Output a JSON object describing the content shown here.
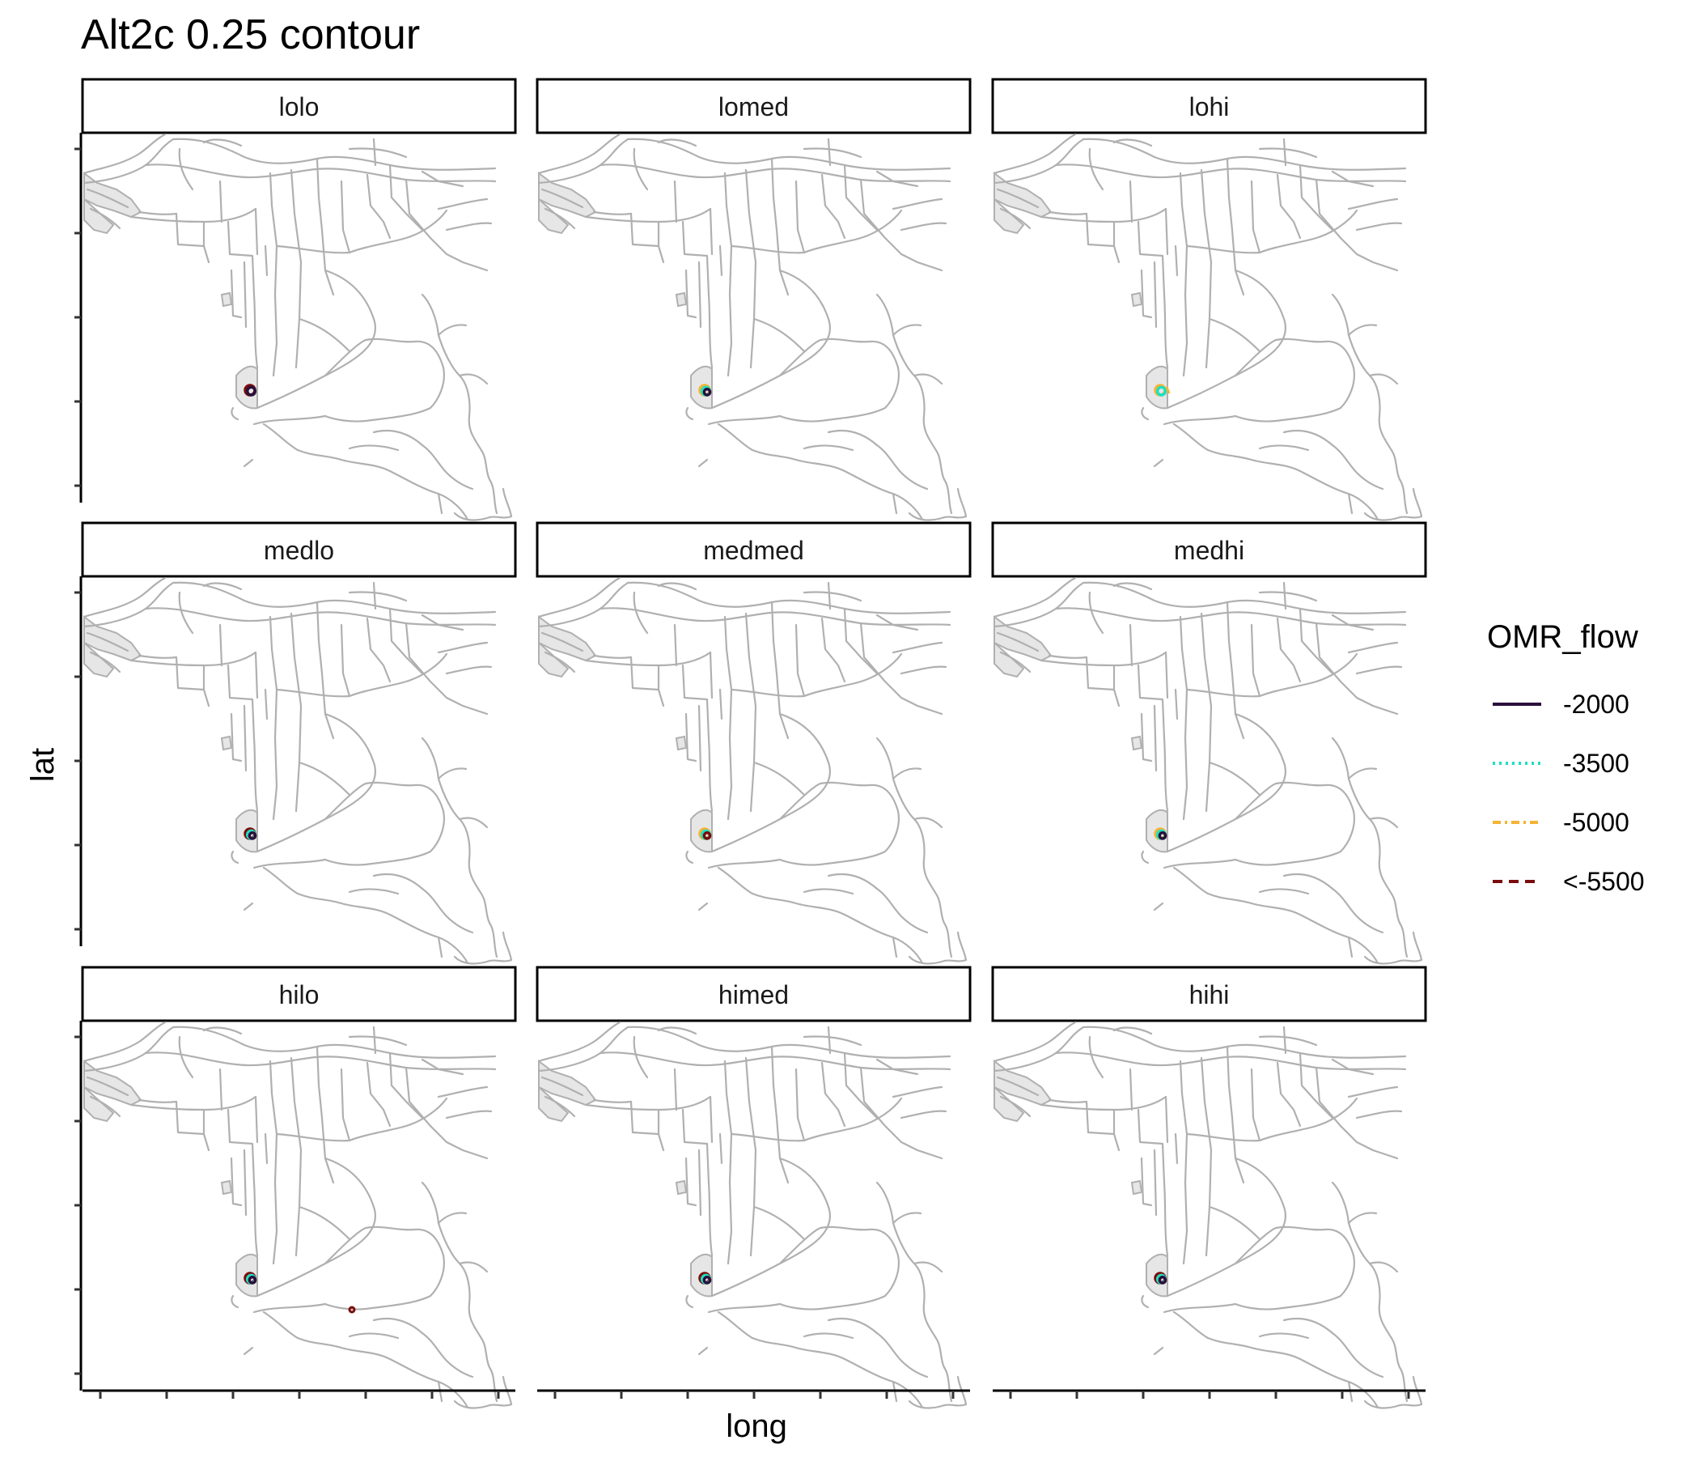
{
  "chart_data": {
    "type": "faceted-map-contour",
    "title": "Alt2c 0.25 contour",
    "xlabel": "long",
    "ylabel": "lat",
    "grid": false,
    "legend": {
      "title": "OMR_flow",
      "placement": "right",
      "entries": [
        {
          "label": "-2000",
          "color": "#2a0f3b",
          "dash": "solid"
        },
        {
          "label": "-3500",
          "color": "#1ee0c0",
          "dash": "dotted"
        },
        {
          "label": "-5000",
          "color": "#f5b335",
          "dash": "dashdot"
        },
        {
          "label": "<-5500",
          "color": "#7a0c0c",
          "dash": "dashed"
        }
      ]
    },
    "panels": [
      {
        "label": "lolo",
        "contours": [
          "<-5500",
          "-2000"
        ]
      },
      {
        "label": "lomed",
        "contours": [
          "-5000",
          "-3500",
          "-2000"
        ]
      },
      {
        "label": "lohi",
        "contours": [
          "-5000",
          "-3500"
        ]
      },
      {
        "label": "medlo",
        "contours": [
          "<-5500",
          "-3500",
          "-2000"
        ]
      },
      {
        "label": "medmed",
        "contours": [
          "-5000",
          "-3500",
          "<-5500"
        ]
      },
      {
        "label": "medhi",
        "contours": [
          "-5000",
          "-3500",
          "-2000"
        ]
      },
      {
        "label": "hilo",
        "contours": [
          "<-5500",
          "-3500",
          "-2000"
        ]
      },
      {
        "label": "himed",
        "contours": [
          "<-5500",
          "-3500",
          "-2000"
        ]
      },
      {
        "label": "hihi",
        "contours": [
          "<-5500",
          "-3500",
          "-2000"
        ]
      }
    ]
  }
}
